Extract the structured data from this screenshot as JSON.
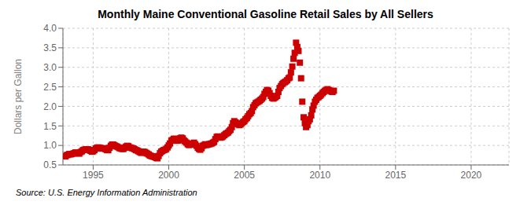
{
  "chart_data": {
    "type": "scatter",
    "title": "Monthly Maine Conventional Gasoline Retail Sales by All Sellers",
    "ylabel": "Dollars per Gallon",
    "annotations": [
      "Source: U.S. Energy Information Administration"
    ],
    "color": "#cc0000",
    "marker": "square",
    "grid": true,
    "xlim": [
      1993.0,
      2022.5
    ],
    "xticks": [
      1995,
      2000,
      2005,
      2010,
      2015,
      2020
    ],
    "ylim": [
      0.5,
      4.0
    ],
    "yticks": [
      0.5,
      {
        "value": 1.0,
        "label": "1.0"
      },
      1.5,
      {
        "value": 2.0,
        "label": "2.0"
      },
      2.5,
      {
        "value": 3.0,
        "label": "3.0"
      },
      3.5,
      {
        "value": 4.0,
        "label": "4.0"
      }
    ],
    "x": [
      1993.17,
      1993.25,
      1993.33,
      1993.42,
      1993.5,
      1993.58,
      1993.67,
      1993.75,
      1993.83,
      1993.92,
      1994.0,
      1994.08,
      1994.17,
      1994.25,
      1994.33,
      1994.42,
      1994.5,
      1994.58,
      1994.67,
      1994.75,
      1994.83,
      1994.92,
      1995.0,
      1995.08,
      1995.17,
      1995.25,
      1995.33,
      1995.42,
      1995.5,
      1995.58,
      1995.67,
      1995.75,
      1995.83,
      1995.92,
      1996.0,
      1996.08,
      1996.17,
      1996.25,
      1996.33,
      1996.42,
      1996.5,
      1996.58,
      1996.67,
      1996.75,
      1996.83,
      1996.92,
      1997.0,
      1997.08,
      1997.17,
      1997.25,
      1997.33,
      1997.42,
      1997.5,
      1997.58,
      1997.67,
      1997.75,
      1997.83,
      1997.92,
      1998.0,
      1998.08,
      1998.17,
      1998.25,
      1998.33,
      1998.42,
      1998.5,
      1998.58,
      1998.67,
      1998.75,
      1998.83,
      1998.92,
      1999.0,
      1999.08,
      1999.17,
      1999.25,
      1999.33,
      1999.42,
      1999.5,
      1999.58,
      1999.67,
      1999.75,
      1999.83,
      1999.92,
      2000.0,
      2000.08,
      2000.17,
      2000.25,
      2000.33,
      2000.42,
      2000.5,
      2000.58,
      2000.67,
      2000.75,
      2000.83,
      2000.92,
      2001.0,
      2001.08,
      2001.17,
      2001.25,
      2001.33,
      2001.42,
      2001.5,
      2001.58,
      2001.67,
      2001.75,
      2001.83,
      2001.92,
      2002.0,
      2002.08,
      2002.17,
      2002.25,
      2002.33,
      2002.42,
      2002.5,
      2002.58,
      2002.67,
      2002.75,
      2002.83,
      2002.92,
      2003.0,
      2003.08,
      2003.17,
      2003.25,
      2003.33,
      2003.42,
      2003.5,
      2003.58,
      2003.67,
      2003.75,
      2003.83,
      2003.92,
      2004.0,
      2004.08,
      2004.17,
      2004.25,
      2004.33,
      2004.42,
      2004.5,
      2004.58,
      2004.67,
      2004.75,
      2004.83,
      2004.92,
      2005.0,
      2005.08,
      2005.17,
      2005.25,
      2005.33,
      2005.42,
      2005.5,
      2005.58,
      2005.67,
      2005.75,
      2005.83,
      2005.92,
      2006.0,
      2006.08,
      2006.17,
      2006.25,
      2006.33,
      2006.42,
      2006.5,
      2006.58,
      2006.67,
      2006.75,
      2006.83,
      2006.92,
      2007.0,
      2007.08,
      2007.17,
      2007.25,
      2007.33,
      2007.42,
      2007.5,
      2007.58,
      2007.67,
      2007.75,
      2007.83,
      2007.92,
      2008.0,
      2008.08,
      2008.17,
      2008.25,
      2008.33,
      2008.42,
      2008.5,
      2008.58,
      2008.67,
      2008.75,
      2008.83,
      2008.92,
      2009.0,
      2009.08,
      2009.17,
      2009.25,
      2009.33,
      2009.42,
      2009.5,
      2009.58,
      2009.67,
      2009.75,
      2009.83,
      2009.92,
      2010.0,
      2010.08,
      2010.17,
      2010.25,
      2010.33,
      2010.42,
      2010.5,
      2010.58,
      2010.67,
      2010.75,
      2010.83,
      2010.92
    ],
    "values": [
      0.72,
      0.75,
      0.76,
      0.78,
      0.77,
      0.78,
      0.79,
      0.8,
      0.82,
      0.81,
      0.8,
      0.79,
      0.83,
      0.85,
      0.88,
      0.89,
      0.9,
      0.9,
      0.9,
      0.88,
      0.86,
      0.84,
      0.85,
      0.88,
      0.92,
      0.94,
      0.95,
      0.94,
      0.93,
      0.92,
      0.93,
      0.92,
      0.9,
      0.88,
      0.88,
      0.94,
      0.99,
      1.02,
      1.02,
      1.0,
      0.98,
      0.97,
      0.95,
      0.93,
      0.92,
      0.91,
      0.91,
      0.94,
      0.97,
      0.99,
      0.98,
      0.95,
      0.94,
      0.93,
      0.92,
      0.9,
      0.88,
      0.87,
      0.85,
      0.83,
      0.81,
      0.82,
      0.84,
      0.83,
      0.81,
      0.79,
      0.77,
      0.74,
      0.73,
      0.72,
      0.71,
      0.7,
      0.68,
      0.67,
      0.73,
      0.8,
      0.84,
      0.86,
      0.88,
      0.89,
      0.91,
      0.95,
      1.0,
      1.05,
      1.12,
      1.14,
      1.17,
      1.17,
      1.15,
      1.12,
      1.14,
      1.18,
      1.2,
      1.18,
      1.13,
      1.1,
      1.07,
      1.03,
      1.01,
      1.02,
      1.04,
      1.05,
      1.07,
      1.03,
      0.99,
      0.94,
      0.91,
      0.89,
      0.93,
      0.99,
      1.01,
      1.03,
      1.01,
      1.02,
      1.03,
      1.04,
      1.05,
      1.07,
      1.09,
      1.16,
      1.22,
      1.23,
      1.21,
      1.2,
      1.21,
      1.23,
      1.26,
      1.29,
      1.31,
      1.33,
      1.37,
      1.4,
      1.47,
      1.57,
      1.62,
      1.59,
      1.56,
      1.54,
      1.52,
      1.54,
      1.57,
      1.6,
      1.62,
      1.67,
      1.7,
      1.75,
      1.8,
      1.83,
      1.88,
      1.98,
      2.03,
      2.08,
      2.1,
      2.12,
      2.14,
      2.17,
      2.2,
      2.24,
      2.32,
      2.37,
      2.42,
      2.4,
      2.34,
      2.27,
      2.22,
      2.2,
      2.22,
      2.24,
      2.27,
      2.37,
      2.47,
      2.52,
      2.57,
      2.6,
      2.62,
      2.64,
      2.67,
      2.72,
      2.74,
      2.87,
      3.02,
      3.22,
      3.37,
      3.63,
      3.52,
      3.42,
      3.12,
      2.72,
      2.12,
      1.72,
      1.57,
      1.47,
      1.52,
      1.62,
      1.67,
      1.77,
      1.92,
      2.02,
      2.12,
      2.17,
      2.22,
      2.24,
      2.27,
      2.3,
      2.34,
      2.37,
      2.4,
      2.42,
      2.44,
      2.42,
      2.4,
      2.38,
      2.37,
      2.4
    ]
  }
}
